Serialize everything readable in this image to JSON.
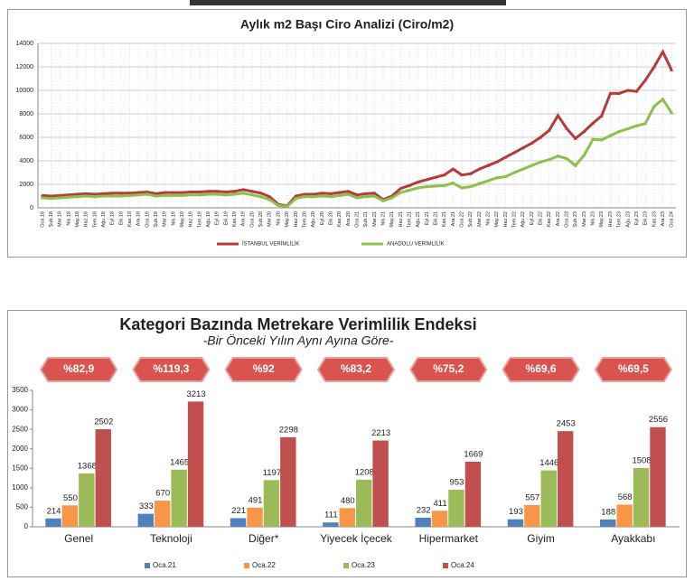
{
  "chart_data": [
    {
      "type": "line",
      "title": "Aylık m2 Başı Ciro Analizi (Ciro/m2)",
      "categories": [
        "Oca.18",
        "Şub.18",
        "Mar.18",
        "Nis.18",
        "May.18",
        "Haz.18",
        "Tem.18",
        "Ağu.18",
        "Eyl.18",
        "Eki.18",
        "Kas.18",
        "Ara.18",
        "Oca.19",
        "Şub.19",
        "Mar.19",
        "Nis.19",
        "May.19",
        "Haz.19",
        "Tem.19",
        "Ağu.19",
        "Eyl.19",
        "Eki.19",
        "Kas.19",
        "Ara.19",
        "Oca.20",
        "Şub.20",
        "Mar.20",
        "Nis.20",
        "May.20",
        "Haz.20",
        "Tem.20",
        "Ağu.20",
        "Eyl.20",
        "Eki.20",
        "Kas.20",
        "Ara.20",
        "Oca.21",
        "Şub.21",
        "Mar.21",
        "Nis.21",
        "May.21",
        "Haz.21",
        "Tem.21",
        "Ağu.21",
        "Eyl.21",
        "Eki.21",
        "Kas.21",
        "Ara.21",
        "Oca.22",
        "Şub.22",
        "Mar.22",
        "Nis.22",
        "May.22",
        "Haz.22",
        "Tem.22",
        "Ağu.22",
        "Eyl.22",
        "Eki.22",
        "Kas.22",
        "Ara.22",
        "Oca.23",
        "Şub.23",
        "Mar.23",
        "Nis.23",
        "May.23",
        "Haz.23",
        "Tem.23",
        "Ağu.23",
        "Eyl.23",
        "Eki.23",
        "Kas.23",
        "Ara.23",
        "Oca.24"
      ],
      "series": [
        {
          "name": "İSTANBUL VERİMLİLİK",
          "color": "#b73a3a",
          "values": [
            1050,
            1000,
            1050,
            1100,
            1150,
            1200,
            1150,
            1200,
            1250,
            1250,
            1250,
            1300,
            1350,
            1200,
            1300,
            1300,
            1300,
            1350,
            1350,
            1400,
            1400,
            1350,
            1400,
            1550,
            1400,
            1250,
            950,
            300,
            150,
            1000,
            1150,
            1150,
            1250,
            1200,
            1300,
            1400,
            1100,
            1200,
            1250,
            700,
            1000,
            1650,
            1900,
            2200,
            2400,
            2600,
            2800,
            3300,
            2800,
            2900,
            3300,
            3600,
            3900,
            4300,
            4700,
            5100,
            5500,
            6000,
            6600,
            7858,
            6749,
            5900,
            6500,
            7200,
            7831,
            9746,
            9737,
            9998,
            9916,
            10861,
            11991,
            13280,
            11729
          ]
        },
        {
          "name": "ANADOLU VERİMLİLİK",
          "color": "#8cc04b",
          "values": [
            850,
            800,
            850,
            900,
            950,
            1000,
            950,
            1000,
            1000,
            1000,
            1050,
            1100,
            1150,
            1000,
            1050,
            1050,
            1050,
            1100,
            1100,
            1150,
            1150,
            1100,
            1150,
            1250,
            1100,
            950,
            700,
            200,
            100,
            800,
            950,
            950,
            1000,
            950,
            1050,
            1150,
            850,
            950,
            1000,
            600,
            850,
            1300,
            1500,
            1700,
            1800,
            1850,
            1900,
            2100,
            1700,
            1800,
            2050,
            2300,
            2550,
            2650,
            3000,
            3300,
            3600,
            3900,
            4100,
            4409,
            4191,
            3600,
            4484,
            5821,
            5784,
            6143,
            6498,
            6730,
            6988,
            7177,
            8625,
            9240,
            8078
          ]
        }
      ],
      "ylim": [
        0,
        14000
      ],
      "yticks": [
        0,
        2000,
        4000,
        6000,
        8000,
        10000,
        12000,
        14000
      ],
      "grid": true,
      "legend": "bottom"
    },
    {
      "type": "bar",
      "title": "Kategori Bazında Metrekare Verimlilik Endeksi",
      "subtitle": "-Bir Önceki Yılın Aynı Ayına Göre-",
      "categories": [
        "Genel",
        "Teknoloji",
        "Diğer*",
        "Yiyecek İçecek",
        "Hipermarket",
        "Giyim",
        "Ayakkabı"
      ],
      "annotations": [
        "%82,9",
        "%119,3",
        "%92",
        "%83,2",
        "%75,2",
        "%69,6",
        "%69,5"
      ],
      "series": [
        {
          "name": "Oca.21",
          "color": "#4f81bd",
          "values": [
            214,
            333,
            221,
            111,
            232,
            193,
            188
          ]
        },
        {
          "name": "Oca.22",
          "color": "#f79646",
          "values": [
            550,
            670,
            491,
            480,
            411,
            557,
            568
          ]
        },
        {
          "name": "Oca.23",
          "color": "#9bbb59",
          "values": [
            1368,
            1465,
            1197,
            1208,
            953,
            1446,
            1508
          ]
        },
        {
          "name": "Oca.24",
          "color": "#c0504d",
          "values": [
            2502,
            3213,
            2298,
            2213,
            1669,
            2453,
            2556
          ]
        }
      ],
      "ylim": [
        0,
        3500
      ],
      "yticks": [
        0,
        500,
        1000,
        1500,
        2000,
        2500,
        3000,
        3500
      ],
      "grid": false,
      "legend": "bottom"
    }
  ]
}
